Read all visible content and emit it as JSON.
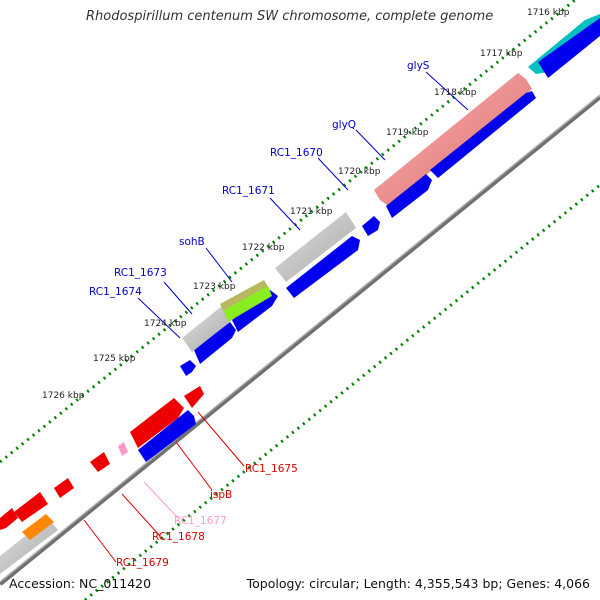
{
  "title": "Rhodospirillum centenum SW chromosome, complete genome",
  "footer": {
    "accession": "Accession: NC_011420",
    "summary": "Topology: circular; Length: 4,355,543 bp; Genes: 4,066"
  },
  "ruler": {
    "unit": "kbp",
    "ticks": [
      "1716 kbp",
      "1717 kbp",
      "1718 kbp",
      "1719 kbp",
      "1720 kbp",
      "1721 kbp",
      "1722 kbp",
      "1723 kbp",
      "1724 kbp",
      "1725 kbp",
      "1726 kbp"
    ]
  },
  "colors": {
    "backbone": "#888888",
    "cds_forward": "#0000ee",
    "gene_reverse": "#ee0000",
    "rrna": "#f08080",
    "trna": "#00c0c0",
    "misc": "#b4b4b4",
    "ticks": "#008000",
    "label_forward": "#0000cc",
    "label_reverse": "#dd0000",
    "label_pink": "#ff99cc"
  },
  "genes": [
    {
      "name": "glyS",
      "strand": "+"
    },
    {
      "name": "glyQ",
      "strand": "+"
    },
    {
      "name": "RC1_1670",
      "strand": "+"
    },
    {
      "name": "RC1_1671",
      "strand": "+"
    },
    {
      "name": "sohB",
      "strand": "+"
    },
    {
      "name": "RC1_1673",
      "strand": "+"
    },
    {
      "name": "RC1_1674",
      "strand": "+"
    },
    {
      "name": "RC1_1675",
      "strand": "-"
    },
    {
      "name": "ispB",
      "strand": "-"
    },
    {
      "name": "RC1_1677",
      "strand": "-"
    },
    {
      "name": "RC1_1678",
      "strand": "-"
    },
    {
      "name": "RC1_1679",
      "strand": "-"
    }
  ]
}
